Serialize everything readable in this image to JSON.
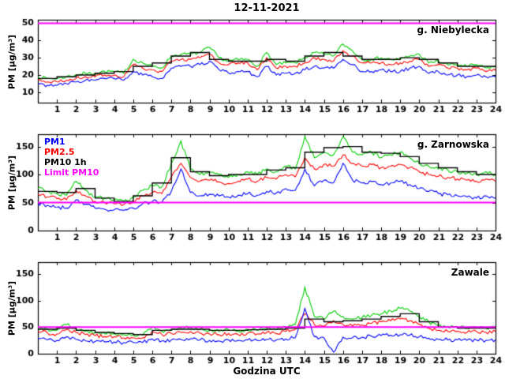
{
  "title": "12-11-2021",
  "xlabel": "Godzina UTC",
  "ylabel": "PM [µg/m³]",
  "legend": {
    "entries": [
      {
        "label": "PM1",
        "color": "#0000ff"
      },
      {
        "label": "PM2.5",
        "color": "#ff0000"
      },
      {
        "label": "PM10 1h",
        "color": "#000000"
      },
      {
        "label": "Limit PM10",
        "color": "#ff00ff"
      }
    ]
  },
  "chart_data": [
    {
      "type": "line",
      "title": "g. Niebylecka",
      "xlim": [
        0,
        24
      ],
      "xticks": [
        1,
        2,
        3,
        4,
        5,
        6,
        7,
        8,
        9,
        10,
        11,
        12,
        13,
        14,
        15,
        16,
        17,
        18,
        19,
        20,
        21,
        22,
        23,
        24
      ],
      "ylim": [
        4,
        52
      ],
      "yticks": [
        10,
        20,
        30,
        40,
        50
      ],
      "limit_line": {
        "value": 50,
        "color": "#ff00ff"
      },
      "x_start": 0,
      "x_step": 0.5,
      "series": [
        {
          "name": "PM10",
          "color": "#00cc00",
          "values": [
            19,
            18,
            18,
            19,
            20,
            21,
            21,
            22,
            22,
            21,
            29,
            27,
            25,
            24,
            31,
            32,
            32,
            33,
            36,
            30,
            28,
            29,
            29,
            25,
            33,
            26,
            27,
            27,
            30,
            33,
            32,
            31,
            38,
            34,
            29,
            29,
            30,
            29,
            29,
            31,
            32,
            27,
            28,
            26,
            26,
            25,
            26,
            24,
            25
          ]
        },
        {
          "name": "PM2.5",
          "color": "#ff0000",
          "values": [
            17,
            16,
            16,
            17,
            18,
            19,
            19,
            20,
            20,
            19,
            26,
            24,
            23,
            22,
            28,
            29,
            29,
            30,
            32,
            27,
            26,
            27,
            27,
            23,
            30,
            24,
            25,
            25,
            27,
            30,
            29,
            28,
            34,
            31,
            27,
            27,
            27,
            26,
            27,
            28,
            29,
            25,
            26,
            24,
            24,
            23,
            24,
            22,
            23
          ]
        },
        {
          "name": "PM1",
          "color": "#0000ff",
          "values": [
            15,
            14,
            14,
            15,
            16,
            17,
            17,
            18,
            18,
            17,
            22,
            20,
            19,
            18,
            24,
            25,
            25,
            26,
            28,
            23,
            21,
            22,
            22,
            19,
            25,
            20,
            21,
            21,
            23,
            25,
            24,
            24,
            29,
            26,
            22,
            22,
            23,
            22,
            22,
            24,
            25,
            21,
            22,
            20,
            20,
            19,
            20,
            19,
            19
          ]
        },
        {
          "name": "PM10 1h",
          "color": "#000000",
          "step": true,
          "values": [
            18,
            19,
            20,
            21,
            22,
            25,
            27,
            31,
            33,
            29,
            28,
            28,
            29,
            28,
            31,
            33,
            31,
            29,
            29,
            30,
            29,
            27,
            25,
            25
          ]
        }
      ]
    },
    {
      "type": "line",
      "title": "g. Zarnowska",
      "xlim": [
        0,
        24
      ],
      "xticks": [
        1,
        2,
        3,
        4,
        5,
        6,
        7,
        8,
        9,
        10,
        11,
        12,
        13,
        14,
        15,
        16,
        17,
        18,
        19,
        20,
        21,
        22,
        23,
        24
      ],
      "ylim": [
        0,
        172
      ],
      "yticks": [
        0,
        50,
        100,
        150
      ],
      "limit_line": {
        "value": 50,
        "color": "#ff00ff"
      },
      "x_start": 0,
      "x_step": 0.5,
      "series": [
        {
          "name": "PM10",
          "color": "#00cc00",
          "values": [
            75,
            70,
            66,
            63,
            88,
            72,
            60,
            57,
            55,
            52,
            60,
            72,
            80,
            78,
            120,
            160,
            110,
            100,
            105,
            100,
            95,
            100,
            105,
            100,
            110,
            105,
            115,
            110,
            168,
            130,
            140,
            135,
            168,
            140,
            135,
            140,
            130,
            135,
            140,
            130,
            120,
            115,
            110,
            108,
            105,
            102,
            100,
            105,
            100
          ]
        },
        {
          "name": "PM2.5",
          "color": "#ff0000",
          "values": [
            65,
            60,
            57,
            55,
            72,
            62,
            52,
            50,
            48,
            46,
            52,
            62,
            68,
            66,
            95,
            120,
            95,
            88,
            90,
            87,
            84,
            88,
            92,
            88,
            95,
            92,
            100,
            96,
            130,
            110,
            118,
            115,
            135,
            120,
            115,
            118,
            112,
            115,
            118,
            112,
            105,
            100,
            97,
            95,
            92,
            90,
            88,
            92,
            88
          ]
        },
        {
          "name": "PM1",
          "color": "#0000ff",
          "values": [
            48,
            45,
            42,
            40,
            55,
            47,
            40,
            38,
            37,
            36,
            40,
            48,
            52,
            50,
            70,
            110,
            68,
            62,
            65,
            62,
            60,
            63,
            66,
            63,
            70,
            67,
            75,
            72,
            110,
            80,
            90,
            85,
            120,
            90,
            85,
            88,
            82,
            85,
            88,
            82,
            75,
            70,
            66,
            64,
            62,
            60,
            58,
            62,
            58
          ]
        },
        {
          "name": "PM10 1h",
          "color": "#000000",
          "step": true,
          "values": [
            70,
            68,
            75,
            58,
            52,
            62,
            85,
            130,
            105,
            98,
            100,
            100,
            108,
            112,
            140,
            148,
            150,
            140,
            138,
            132,
            120,
            112,
            105,
            100
          ]
        }
      ]
    },
    {
      "type": "line",
      "title": "Zawale",
      "xlim": [
        0,
        24
      ],
      "xticks": [
        1,
        2,
        3,
        4,
        5,
        6,
        7,
        8,
        9,
        10,
        11,
        12,
        13,
        14,
        15,
        16,
        17,
        18,
        19,
        20,
        21,
        22,
        23,
        24
      ],
      "ylim": [
        0,
        172
      ],
      "yticks": [
        0,
        50,
        100,
        150
      ],
      "limit_line": {
        "value": 50,
        "color": "#ff00ff"
      },
      "x_start": 0,
      "x_step": 0.5,
      "series": [
        {
          "name": "PM10",
          "color": "#00cc00",
          "values": [
            50,
            46,
            44,
            55,
            48,
            42,
            40,
            38,
            38,
            36,
            36,
            35,
            50,
            42,
            45,
            48,
            50,
            46,
            44,
            42,
            45,
            43,
            46,
            44,
            48,
            45,
            50,
            55,
            125,
            70,
            65,
            80,
            70,
            65,
            68,
            72,
            75,
            80,
            85,
            80,
            70,
            60,
            52,
            50,
            50,
            48,
            50,
            48,
            50
          ]
        },
        {
          "name": "PM2.5",
          "color": "#ff0000",
          "values": [
            42,
            39,
            37,
            46,
            40,
            36,
            34,
            32,
            32,
            30,
            30,
            30,
            42,
            36,
            38,
            40,
            42,
            39,
            37,
            36,
            38,
            36,
            39,
            37,
            40,
            38,
            42,
            46,
            75,
            55,
            52,
            62,
            55,
            52,
            54,
            57,
            60,
            62,
            65,
            62,
            55,
            48,
            44,
            42,
            42,
            40,
            42,
            40,
            42
          ]
        },
        {
          "name": "PM1",
          "color": "#0000ff",
          "values": [
            28,
            26,
            25,
            32,
            27,
            24,
            23,
            22,
            22,
            21,
            21,
            21,
            28,
            24,
            26,
            27,
            28,
            26,
            25,
            24,
            26,
            25,
            26,
            25,
            27,
            26,
            28,
            30,
            85,
            32,
            30,
            3,
            31,
            30,
            31,
            33,
            34,
            35,
            36,
            35,
            32,
            29,
            27,
            26,
            26,
            25,
            26,
            25,
            26
          ]
        },
        {
          "name": "PM10 1h",
          "color": "#000000",
          "step": true,
          "values": [
            46,
            48,
            44,
            40,
            38,
            36,
            44,
            46,
            46,
            44,
            44,
            45,
            46,
            48,
            65,
            60,
            62,
            65,
            70,
            75,
            60,
            50,
            48,
            48
          ]
        }
      ]
    }
  ]
}
